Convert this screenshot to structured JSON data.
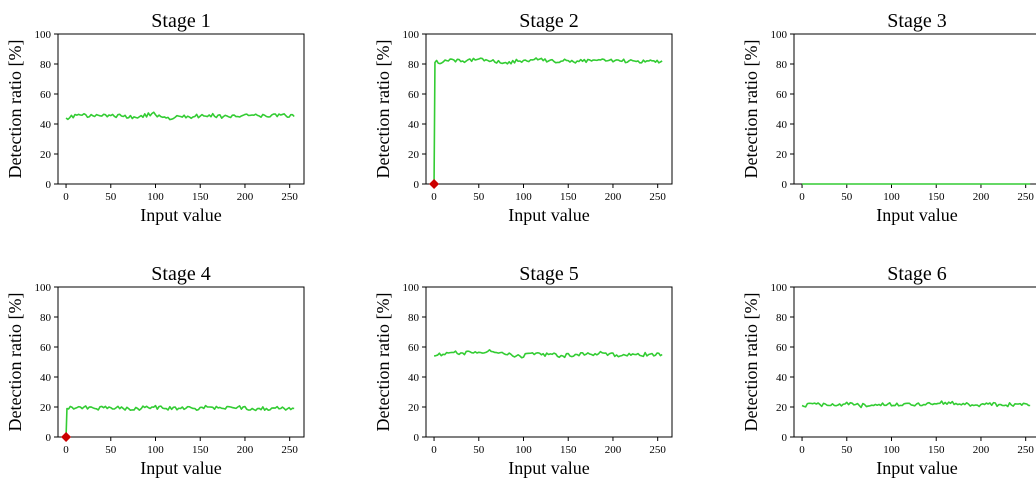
{
  "chart_data": [
    {
      "type": "line",
      "title": "Stage 1",
      "xlabel": "Input value",
      "ylabel": "Detection ratio [%]",
      "xlim": [
        -9,
        266
      ],
      "ylim": [
        0,
        100
      ],
      "xticks": [
        0,
        50,
        100,
        150,
        200,
        250
      ],
      "yticks": [
        0,
        20,
        40,
        60,
        80,
        100
      ],
      "line_color": "#33cc33",
      "marker_color": "#cc0000",
      "series": [
        {
          "x": [
            0,
            16,
            32,
            48,
            64,
            80,
            96,
            112,
            128,
            144,
            160,
            176,
            192,
            208,
            224,
            240,
            255
          ],
          "values": [
            44,
            46,
            45,
            46,
            45,
            44,
            47,
            44,
            45,
            45,
            46,
            45,
            45,
            46,
            45,
            46,
            45
          ]
        }
      ],
      "markers": []
    },
    {
      "type": "line",
      "title": "Stage 2",
      "xlabel": "Input value",
      "ylabel": "Detection ratio [%]",
      "xlim": [
        -9,
        266
      ],
      "ylim": [
        0,
        100
      ],
      "xticks": [
        0,
        50,
        100,
        150,
        200,
        250
      ],
      "yticks": [
        0,
        20,
        40,
        60,
        80,
        100
      ],
      "line_color": "#33cc33",
      "marker_color": "#cc0000",
      "series": [
        {
          "x": [
            0,
            1,
            16,
            32,
            48,
            64,
            80,
            96,
            112,
            128,
            144,
            160,
            176,
            192,
            208,
            224,
            240,
            255
          ],
          "values": [
            0,
            81,
            82,
            82,
            83,
            82,
            81,
            82,
            83,
            82,
            82,
            82,
            82,
            82,
            82,
            82,
            82,
            82
          ]
        }
      ],
      "markers": [
        {
          "x": 0,
          "y": 0
        }
      ]
    },
    {
      "type": "line",
      "title": "Stage 3",
      "xlabel": "Input value",
      "ylabel": "Detection ratio [%]",
      "xlim": [
        -9,
        266
      ],
      "ylim": [
        0,
        100
      ],
      "xticks": [
        0,
        50,
        100,
        150,
        200,
        250
      ],
      "yticks": [
        0,
        20,
        40,
        60,
        80,
        100
      ],
      "line_color": "#33cc33",
      "marker_color": "#cc0000",
      "series": [
        {
          "x": [
            0,
            255
          ],
          "values": [
            0,
            0
          ]
        }
      ],
      "markers": []
    },
    {
      "type": "line",
      "title": "Stage 4",
      "xlabel": "Input value",
      "ylabel": "Detection ratio [%]",
      "xlim": [
        -9,
        266
      ],
      "ylim": [
        0,
        100
      ],
      "xticks": [
        0,
        50,
        100,
        150,
        200,
        250
      ],
      "yticks": [
        0,
        20,
        40,
        60,
        80,
        100
      ],
      "line_color": "#33cc33",
      "marker_color": "#cc0000",
      "series": [
        {
          "x": [
            0,
            1,
            16,
            32,
            48,
            64,
            80,
            96,
            112,
            128,
            144,
            160,
            176,
            192,
            208,
            224,
            240,
            255
          ],
          "values": [
            0,
            19,
            20,
            19,
            20,
            19,
            19,
            20,
            19,
            19,
            19,
            20,
            19,
            20,
            19,
            19,
            19,
            19
          ]
        }
      ],
      "markers": [
        {
          "x": 0,
          "y": 0
        }
      ]
    },
    {
      "type": "line",
      "title": "Stage 5",
      "xlabel": "Input value",
      "ylabel": "Detection ratio [%]",
      "xlim": [
        -9,
        266
      ],
      "ylim": [
        0,
        100
      ],
      "xticks": [
        0,
        50,
        100,
        150,
        200,
        250
      ],
      "yticks": [
        0,
        20,
        40,
        60,
        80,
        100
      ],
      "line_color": "#33cc33",
      "marker_color": "#cc0000",
      "series": [
        {
          "x": [
            0,
            16,
            32,
            48,
            64,
            80,
            96,
            112,
            128,
            144,
            160,
            176,
            192,
            208,
            224,
            240,
            255
          ],
          "values": [
            54,
            56,
            56,
            56,
            57,
            55,
            54,
            55,
            55,
            54,
            55,
            55,
            56,
            54,
            55,
            55,
            55
          ]
        }
      ],
      "markers": []
    },
    {
      "type": "line",
      "title": "Stage 6",
      "xlabel": "Input value",
      "ylabel": "Detection ratio [%]",
      "xlim": [
        -9,
        266
      ],
      "ylim": [
        0,
        100
      ],
      "xticks": [
        0,
        50,
        100,
        150,
        200,
        250
      ],
      "yticks": [
        0,
        20,
        40,
        60,
        80,
        100
      ],
      "line_color": "#33cc33",
      "marker_color": "#cc0000",
      "series": [
        {
          "x": [
            0,
            16,
            32,
            48,
            64,
            80,
            96,
            112,
            128,
            144,
            160,
            176,
            192,
            208,
            224,
            240,
            255
          ],
          "values": [
            21,
            22,
            21,
            22,
            21,
            21,
            22,
            21,
            22,
            22,
            23,
            22,
            21,
            22,
            21,
            22,
            21
          ]
        }
      ],
      "markers": []
    }
  ]
}
